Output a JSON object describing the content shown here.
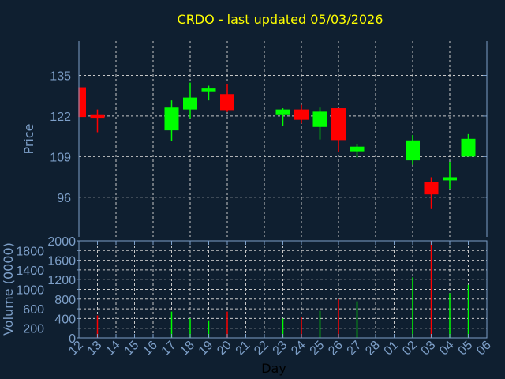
{
  "chart_data": [
    {
      "type": "candlestick",
      "title": "CRDO - last updated 05/03/2026",
      "ylabel": "Price",
      "xlabel": "Day",
      "ylim": [
        83.3,
        146
      ],
      "yticks": [
        96,
        109,
        122,
        135
      ],
      "x_ticks": [
        "12",
        "13",
        "14",
        "15",
        "16",
        "17",
        "18",
        "19",
        "20",
        "21",
        "22",
        "23",
        "24",
        "25",
        "26",
        "27",
        "28",
        "01",
        "02",
        "03",
        "04",
        "05",
        "06"
      ],
      "grid": true,
      "colors": {
        "up": "#00ff00",
        "down": "#ff0000"
      },
      "candles": [
        {
          "day": "12",
          "open": 131.2,
          "high": 131.2,
          "low": 121.7,
          "close": 121.7
        },
        {
          "day": "13",
          "open": 122.3,
          "high": 124.1,
          "low": 116.8,
          "close": 121.2
        },
        {
          "day": "17",
          "open": 117.4,
          "high": 127.0,
          "low": 113.9,
          "close": 124.7
        },
        {
          "day": "18",
          "open": 124.1,
          "high": 132.7,
          "low": 121.1,
          "close": 127.9
        },
        {
          "day": "19",
          "open": 129.9,
          "high": 131.7,
          "low": 127.0,
          "close": 130.8
        },
        {
          "day": "20",
          "open": 129.0,
          "high": 132.1,
          "low": 123.3,
          "close": 123.9
        },
        {
          "day": "23",
          "open": 122.3,
          "high": 124.5,
          "low": 118.8,
          "close": 124.1
        },
        {
          "day": "24",
          "open": 124.1,
          "high": 125.6,
          "low": 119.6,
          "close": 120.8
        },
        {
          "day": "25",
          "open": 118.5,
          "high": 124.7,
          "low": 114.5,
          "close": 123.4
        },
        {
          "day": "26",
          "open": 124.5,
          "high": 124.5,
          "low": 110.4,
          "close": 114.3
        },
        {
          "day": "27",
          "open": 110.7,
          "high": 112.9,
          "low": 108.7,
          "close": 112.2
        },
        {
          "day": "02",
          "open": 107.8,
          "high": 115.9,
          "low": 106.4,
          "close": 114.2
        },
        {
          "day": "03",
          "open": 100.8,
          "high": 102.4,
          "low": 92.2,
          "close": 96.9
        },
        {
          "day": "04",
          "open": 101.4,
          "high": 107.3,
          "low": 98.5,
          "close": 102.4
        },
        {
          "day": "05",
          "open": 109.0,
          "high": 116.2,
          "low": 109.0,
          "close": 114.7
        }
      ]
    },
    {
      "type": "bar",
      "ylabel": "Volume (0000)",
      "xlabel": "Day",
      "ylim": [
        0,
        2000
      ],
      "yticks": [
        0,
        200,
        400,
        600,
        800,
        1000,
        1200,
        1400,
        1600,
        1800,
        2000
      ],
      "volumes": [
        {
          "day": "13",
          "value": 464,
          "dir": "down"
        },
        {
          "day": "17",
          "value": 543,
          "dir": "up"
        },
        {
          "day": "18",
          "value": 399,
          "dir": "up"
        },
        {
          "day": "19",
          "value": 362,
          "dir": "up"
        },
        {
          "day": "20",
          "value": 543,
          "dir": "down"
        },
        {
          "day": "23",
          "value": 399,
          "dir": "up"
        },
        {
          "day": "24",
          "value": 435,
          "dir": "down"
        },
        {
          "day": "25",
          "value": 558,
          "dir": "up"
        },
        {
          "day": "26",
          "value": 797,
          "dir": "down"
        },
        {
          "day": "27",
          "value": 754,
          "dir": "up"
        },
        {
          "day": "02",
          "value": 1246,
          "dir": "up"
        },
        {
          "day": "03",
          "value": 2000,
          "dir": "down"
        },
        {
          "day": "04",
          "value": 920,
          "dir": "up"
        },
        {
          "day": "05",
          "value": 1094,
          "dir": "up"
        }
      ]
    }
  ]
}
